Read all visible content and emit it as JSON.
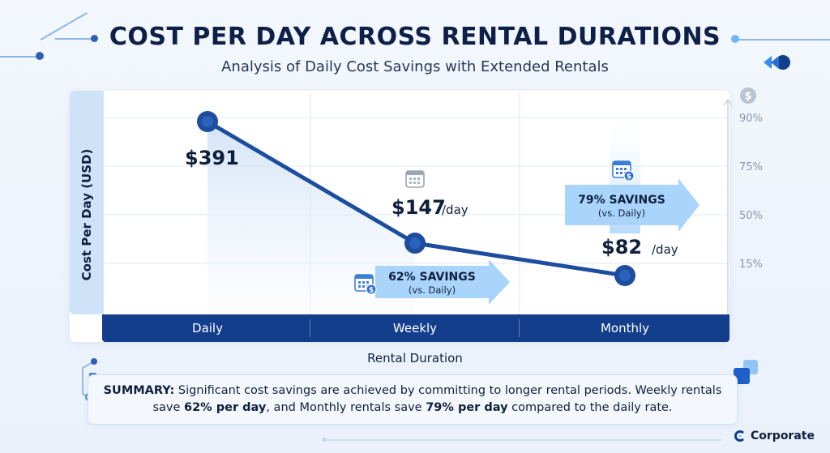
{
  "header": {
    "title": "COST PER DAY ACROSS RENTAL DURATIONS",
    "subtitle": "Analysis of Daily Cost Savings with Extended Rentals"
  },
  "chart_data": {
    "type": "line",
    "categories": [
      "Daily",
      "Weekly",
      "Monthly"
    ],
    "series": [
      {
        "values": [
          391,
          147,
          82
        ]
      }
    ],
    "data_labels": [
      "$391",
      "$147",
      "$82"
    ],
    "per_day_suffix": "/day",
    "ylabel": "Cost Per Day (USD)",
    "xlabel": "Rental Duration",
    "right_axis_ticks": [
      "90%",
      "75%",
      "50%",
      "15%"
    ],
    "ylim": [
      0,
      450
    ],
    "grid": true,
    "savings_callouts": [
      {
        "category": "Weekly",
        "value": "62% SAVINGS",
        "note": "(vs. Daily)"
      },
      {
        "category": "Monthly",
        "value": "79% SAVINGS",
        "note": "(vs. Daily)"
      }
    ],
    "colors": {
      "line": "#1d4d9e",
      "axis_band": "#123e8c",
      "callout": "#a9d4fb"
    }
  },
  "summary": {
    "label": "SUMMARY:",
    "text_1": " Significant cost savings are achieved by committing to longer rental periods. Weekly rentals save ",
    "weekly_savings": "62% per day",
    "text_2": ", and Monthly rentals save ",
    "monthly_savings": "79% per day",
    "text_3": " compared to the daily rate."
  },
  "brand": {
    "name": "Corporate"
  },
  "icons": [
    "calendar-icon",
    "calendar-dollar-icon",
    "dollar-coin-icon",
    "rewind-icon"
  ]
}
